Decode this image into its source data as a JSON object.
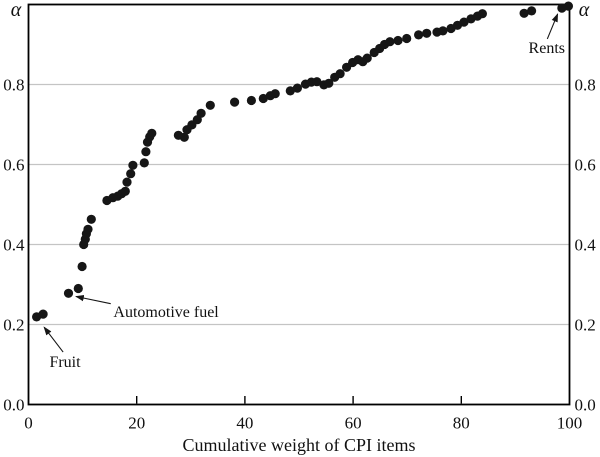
{
  "figure": {
    "background": "#ffffff"
  },
  "chart_data": {
    "type": "scatter",
    "title": "",
    "xlabel": "Cumulative weight of CPI items",
    "ylabel": "α",
    "ylabel_right": "α",
    "xlim": [
      0,
      100
    ],
    "ylim": [
      0,
      1.0
    ],
    "x_ticks": [
      0,
      20,
      40,
      60,
      80,
      100
    ],
    "x_tick_labels": [
      "0",
      "20",
      "40",
      "60",
      "80",
      "100"
    ],
    "y_ticks": [
      0.0,
      0.2,
      0.4,
      0.6,
      0.8
    ],
    "y_tick_labels": [
      "0.0",
      "0.2",
      "0.4",
      "0.6",
      "0.8"
    ],
    "grid": "horizontal",
    "legend": "none",
    "marker_color": "#161616",
    "grid_color": "#c4c4c4",
    "axis_color": "#000000",
    "series": [
      {
        "name": "CPI items",
        "points": [
          [
            1.5,
            0.219
          ],
          [
            2.7,
            0.226
          ],
          [
            7.4,
            0.278
          ],
          [
            9.2,
            0.29
          ],
          [
            9.9,
            0.345
          ],
          [
            10.2,
            0.4
          ],
          [
            10.5,
            0.413
          ],
          [
            10.7,
            0.427
          ],
          [
            11.0,
            0.438
          ],
          [
            11.6,
            0.463
          ],
          [
            14.5,
            0.51
          ],
          [
            15.6,
            0.517
          ],
          [
            16.5,
            0.521
          ],
          [
            17.2,
            0.527
          ],
          [
            17.9,
            0.533
          ],
          [
            18.2,
            0.556
          ],
          [
            18.9,
            0.577
          ],
          [
            19.3,
            0.598
          ],
          [
            21.4,
            0.604
          ],
          [
            21.7,
            0.632
          ],
          [
            22.0,
            0.656
          ],
          [
            22.4,
            0.669
          ],
          [
            22.8,
            0.678
          ],
          [
            27.7,
            0.673
          ],
          [
            28.8,
            0.668
          ],
          [
            29.3,
            0.687
          ],
          [
            30.2,
            0.699
          ],
          [
            31.2,
            0.712
          ],
          [
            31.9,
            0.728
          ],
          [
            33.6,
            0.748
          ],
          [
            38.1,
            0.756
          ],
          [
            41.2,
            0.76
          ],
          [
            43.4,
            0.765
          ],
          [
            44.7,
            0.772
          ],
          [
            45.6,
            0.777
          ],
          [
            48.4,
            0.784
          ],
          [
            49.7,
            0.791
          ],
          [
            51.2,
            0.801
          ],
          [
            52.3,
            0.806
          ],
          [
            53.3,
            0.807
          ],
          [
            54.6,
            0.799
          ],
          [
            55.5,
            0.803
          ],
          [
            56.6,
            0.818
          ],
          [
            57.6,
            0.827
          ],
          [
            58.8,
            0.843
          ],
          [
            59.9,
            0.855
          ],
          [
            60.9,
            0.862
          ],
          [
            61.8,
            0.857
          ],
          [
            62.6,
            0.866
          ],
          [
            63.9,
            0.88
          ],
          [
            64.9,
            0.89
          ],
          [
            65.8,
            0.9
          ],
          [
            66.8,
            0.907
          ],
          [
            68.3,
            0.91
          ],
          [
            69.9,
            0.915
          ],
          [
            72.1,
            0.924
          ],
          [
            73.6,
            0.928
          ],
          [
            75.5,
            0.931
          ],
          [
            76.6,
            0.934
          ],
          [
            78.1,
            0.94
          ],
          [
            79.3,
            0.948
          ],
          [
            80.5,
            0.956
          ],
          [
            81.8,
            0.964
          ],
          [
            83.0,
            0.971
          ],
          [
            83.9,
            0.977
          ],
          [
            91.6,
            0.978
          ],
          [
            93.0,
            0.984
          ],
          [
            98.6,
            0.991
          ],
          [
            99.8,
            0.996
          ]
        ]
      }
    ],
    "annotations": [
      {
        "label": "Fruit",
        "target_point": [
          1.5,
          0.219
        ],
        "label_at": [
          6.75,
          0.094
        ],
        "align": "middle",
        "arrow_from": [
          6.4,
          0.131
        ],
        "arrow_to": [
          2.9,
          0.193
        ]
      },
      {
        "label": "Automotive fuel",
        "target_point": [
          7.4,
          0.278
        ],
        "label_at": [
          15.7,
          0.219
        ],
        "align": "start",
        "arrow_from": [
          15.2,
          0.252
        ],
        "arrow_to": [
          8.8,
          0.27
        ]
      },
      {
        "label": "Rents",
        "target_point": [
          99.8,
          0.996
        ],
        "label_at": [
          95.8,
          0.879
        ],
        "align": "middle",
        "arrow_from": [
          95.9,
          0.914
        ],
        "arrow_to": [
          97.8,
          0.976
        ]
      }
    ]
  }
}
